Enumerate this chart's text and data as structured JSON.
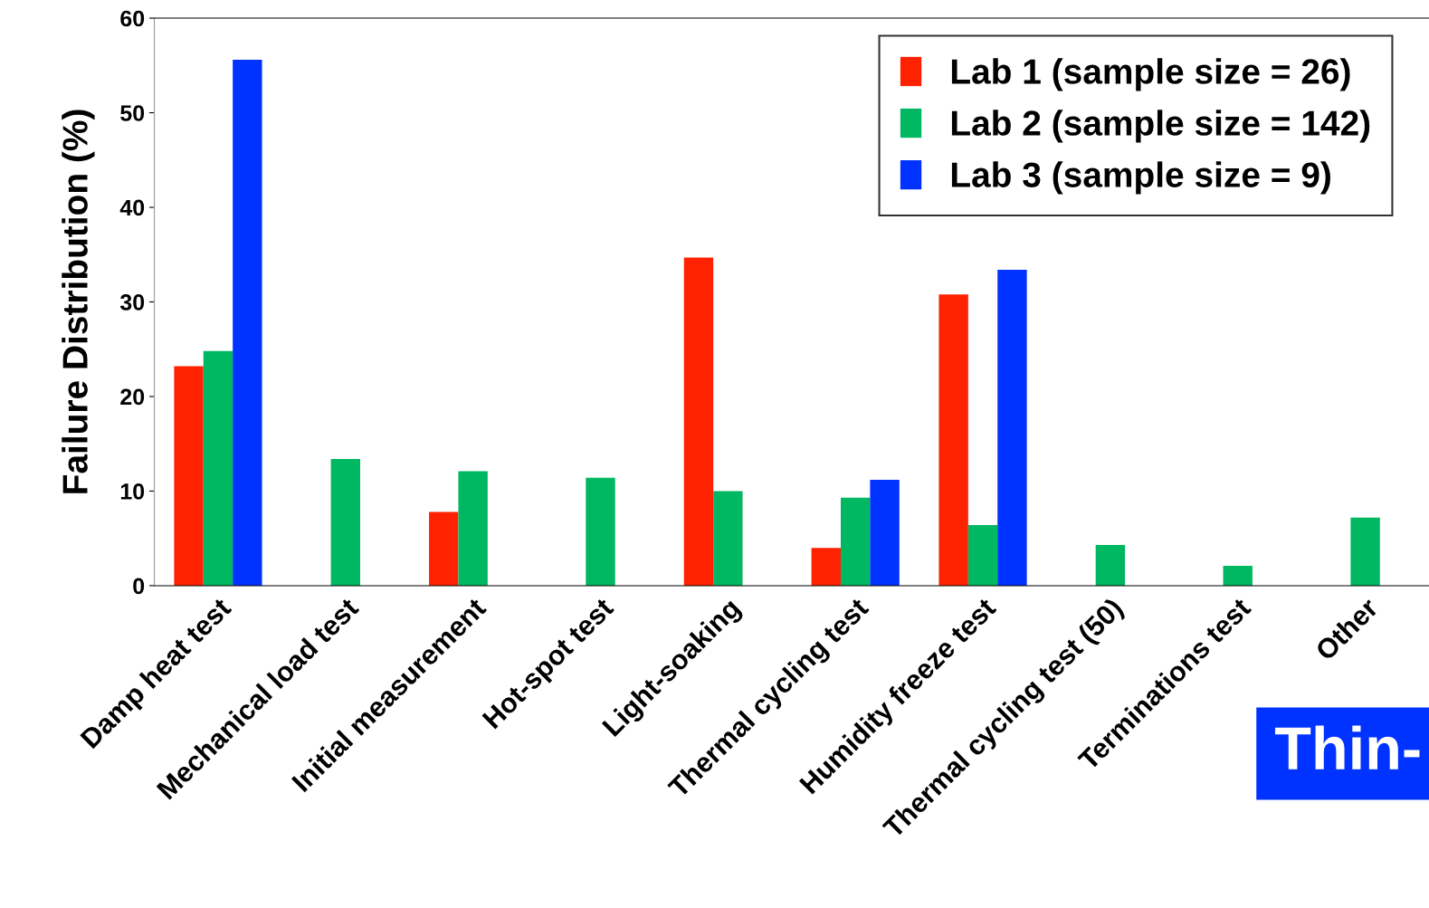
{
  "chart_data": {
    "type": "bar",
    "ylabel": "Failure Distribution (%)",
    "categories": [
      "Damp heat test",
      "Mechanical load test",
      "Initial measurement",
      "Hot-spot test",
      "Light-soaking",
      "Thermal cycling test",
      "Humidity freeze test",
      "Thermal cycling test (50)",
      "Terminations test",
      "Other"
    ],
    "series": [
      {
        "name": "Lab 1 (sample size = 26)",
        "color": "#ff2200",
        "values": [
          23.2,
          null,
          7.8,
          null,
          34.7,
          4.0,
          30.8,
          null,
          null,
          null
        ]
      },
      {
        "name": "Lab 2 (sample size = 142)",
        "color": "#00b862",
        "values": [
          24.8,
          13.4,
          12.1,
          11.4,
          10.0,
          9.3,
          6.4,
          4.3,
          2.1,
          7.2
        ]
      },
      {
        "name": "Lab 3 (sample size = 9)",
        "color": "#0033ff",
        "values": [
          55.6,
          null,
          null,
          null,
          null,
          11.2,
          33.4,
          null,
          null,
          null
        ]
      }
    ],
    "ylim": [
      0,
      60
    ],
    "yticks": [
      0,
      10,
      20,
      30,
      40,
      50,
      60
    ],
    "grid": false,
    "legend": "top right",
    "annotations": [
      "Thin-"
    ]
  }
}
